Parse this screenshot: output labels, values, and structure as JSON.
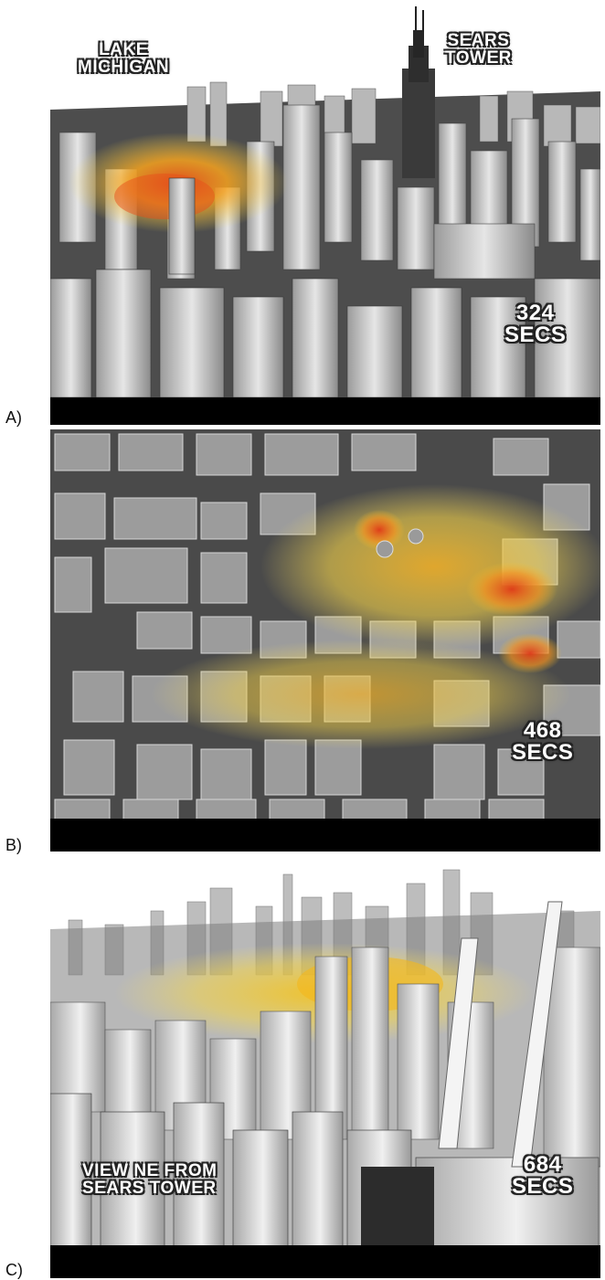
{
  "panels": [
    {
      "label": "A)",
      "place_label": [
        "LAKE",
        "MICHIGAN"
      ],
      "landmark_label": [
        "SEARS",
        "TOWER"
      ],
      "time_label": [
        "324",
        "SECS"
      ]
    },
    {
      "label": "B)",
      "time_label": [
        "468",
        "SECS"
      ]
    },
    {
      "label": "C)",
      "view_label": [
        "VIEW NE FROM",
        "SEARS TOWER"
      ],
      "time_label": [
        "684",
        "SECS"
      ]
    }
  ],
  "colors": {
    "plume_core": "#e8501a",
    "plume_mid": "#f6a21e",
    "plume_edge": "#f7d84a",
    "ground": "#4a4a4a",
    "building": "#c9c9c9"
  }
}
